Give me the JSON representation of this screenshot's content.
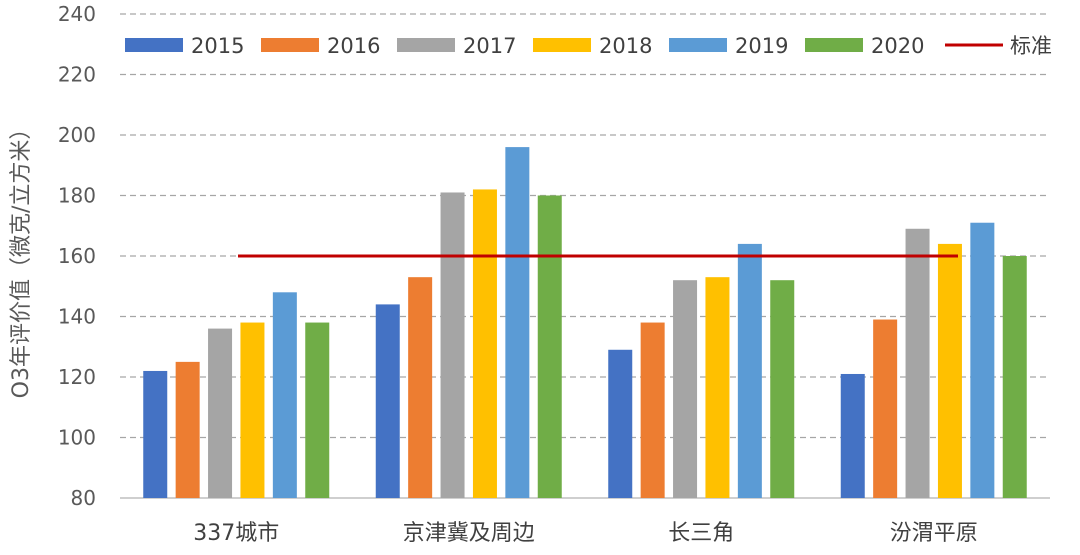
{
  "chart_data": {
    "type": "bar",
    "title": "",
    "ylabel": "O3年评价值（微克/立方米）",
    "xlabel": "",
    "ylim": [
      80,
      240
    ],
    "yticks": [
      80,
      100,
      120,
      140,
      160,
      180,
      200,
      220,
      240
    ],
    "grid": true,
    "legend_position": "top",
    "categories": [
      "337城市",
      "京津冀及周边",
      "长三角",
      "汾渭平原"
    ],
    "series": [
      {
        "name": "2015",
        "color": "#4472C4",
        "values": [
          122,
          144,
          129,
          121
        ]
      },
      {
        "name": "2016",
        "color": "#ED7D31",
        "values": [
          125,
          153,
          138,
          139
        ]
      },
      {
        "name": "2017",
        "color": "#A5A5A5",
        "values": [
          136,
          181,
          152,
          169
        ]
      },
      {
        "name": "2018",
        "color": "#FFC000",
        "values": [
          138,
          182,
          153,
          164
        ]
      },
      {
        "name": "2019",
        "color": "#5B9BD5",
        "values": [
          148,
          196,
          164,
          171
        ]
      },
      {
        "name": "2020",
        "color": "#70AD47",
        "values": [
          138,
          180,
          152,
          160
        ]
      }
    ],
    "reference_line": {
      "name": "标准",
      "value": 160,
      "color": "#C00000"
    }
  }
}
